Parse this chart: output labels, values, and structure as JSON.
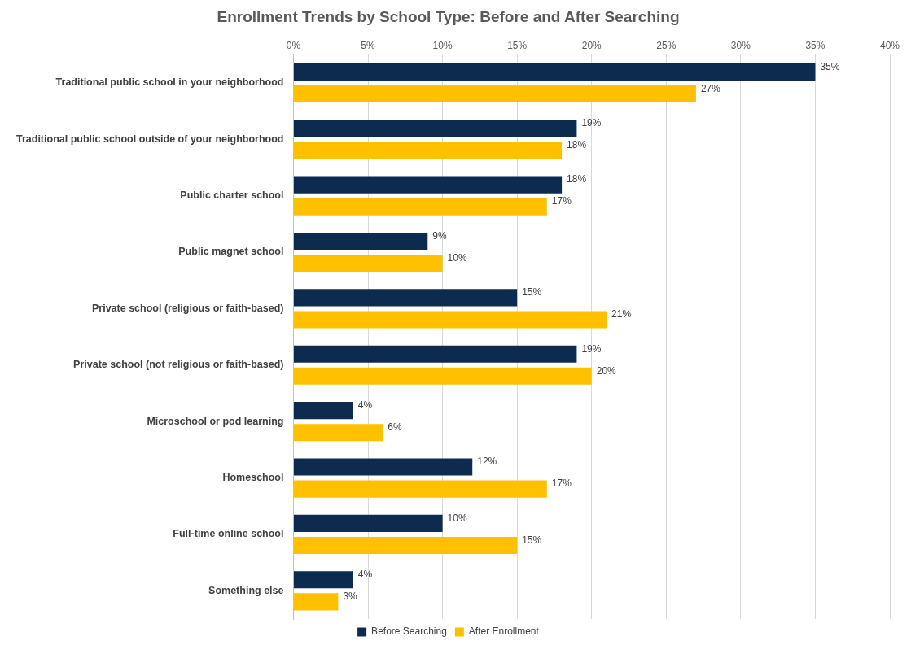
{
  "chart_data": {
    "type": "bar",
    "orientation": "horizontal",
    "title": "Enrollment Trends by School Type: Before and After Searching",
    "categories": [
      "Traditional public school in your neighborhood",
      "Traditional public school outside of your neighborhood",
      "Public charter school",
      "Public magnet school",
      "Private school (religious or faith-based)",
      "Private school (not religious or faith-based)",
      "Microschool or pod learning",
      "Homeschool",
      "Full-time online school",
      "Something else"
    ],
    "series": [
      {
        "name": "Before Searching",
        "color": "#0d2b4e",
        "values": [
          35,
          19,
          18,
          9,
          15,
          19,
          4,
          12,
          10,
          4
        ],
        "value_labels": [
          "35%",
          "19%",
          "18%",
          "9%",
          "15%",
          "19%",
          "4%",
          "12%",
          "10%",
          "4%"
        ]
      },
      {
        "name": "After Enrollment",
        "color": "#ffc000",
        "values": [
          27,
          18,
          17,
          10,
          21,
          20,
          6,
          17,
          15,
          3
        ],
        "value_labels": [
          "27%",
          "18%",
          "17%",
          "10%",
          "21%",
          "20%",
          "6%",
          "17%",
          "15%",
          "3%"
        ]
      }
    ],
    "xlim": [
      0,
      40
    ],
    "xticks": [
      {
        "value": 0,
        "label": "0%"
      },
      {
        "value": 5,
        "label": "5%"
      },
      {
        "value": 10,
        "label": "10%"
      },
      {
        "value": 15,
        "label": "15%"
      },
      {
        "value": 20,
        "label": "20%"
      },
      {
        "value": 25,
        "label": "25%"
      },
      {
        "value": 30,
        "label": "30%"
      },
      {
        "value": 35,
        "label": "35%"
      },
      {
        "value": 40,
        "label": "40%"
      }
    ],
    "grid": "x",
    "legend": "bottom"
  }
}
